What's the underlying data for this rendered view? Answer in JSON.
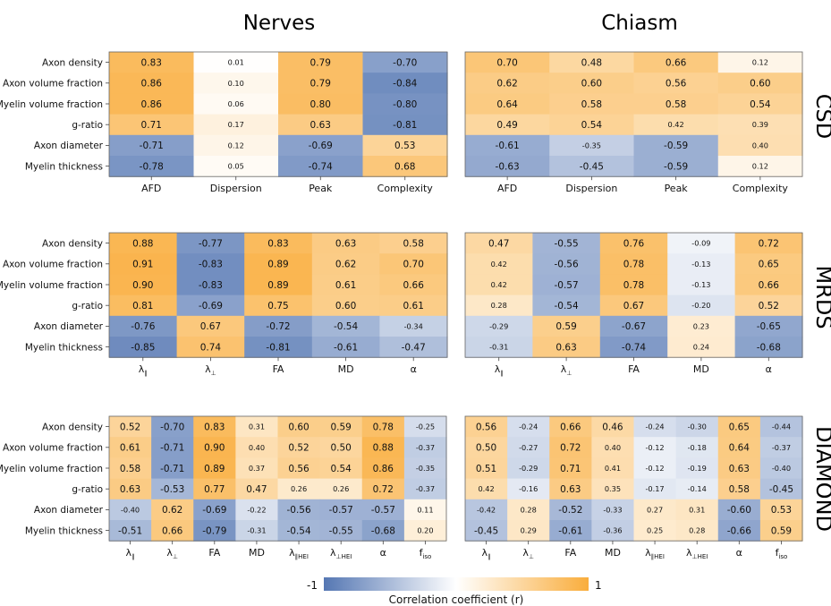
{
  "chart_data": {
    "type": "heatmap",
    "column_titles": [
      "Nerves",
      "Chiasm"
    ],
    "row_titles": [
      "CSD",
      "MRDS",
      "DIAMOND"
    ],
    "row_labels": [
      "Axon density",
      "Axon volume fraction",
      "Myelin volume fraction",
      "g-ratio",
      "Axon diameter",
      "Myelin thickness"
    ],
    "colorbar": {
      "min_label": "-1",
      "max_label": "1",
      "title": "Correlation coefficient (r)",
      "color_negative": "#5577b3",
      "color_zero": "#ffffff",
      "color_positive": "#f9ad3c"
    },
    "panels": [
      {
        "id": "csd-nerves",
        "columns": [
          {
            "main": "AFD"
          },
          {
            "main": "Dispersion"
          },
          {
            "main": "Peak"
          },
          {
            "main": "Complexity"
          }
        ],
        "values": [
          [
            "0.83",
            "0.01",
            "0.79",
            "-0.70"
          ],
          [
            "0.86",
            "0.10",
            "0.79",
            "-0.84"
          ],
          [
            "0.86",
            "0.06",
            "0.80",
            "-0.80"
          ],
          [
            "0.71",
            "0.17",
            "0.63",
            "-0.81"
          ],
          [
            "-0.71",
            "0.12",
            "-0.69",
            "0.53"
          ],
          [
            "-0.78",
            "0.05",
            "-0.74",
            "0.68"
          ]
        ]
      },
      {
        "id": "csd-chiasm",
        "columns": [
          {
            "main": "AFD"
          },
          {
            "main": "Dispersion"
          },
          {
            "main": "Peak"
          },
          {
            "main": "Complexity"
          }
        ],
        "values": [
          [
            "0.70",
            "0.48",
            "0.66",
            "0.12"
          ],
          [
            "0.62",
            "0.60",
            "0.56",
            "0.60"
          ],
          [
            "0.64",
            "0.58",
            "0.58",
            "0.54"
          ],
          [
            "0.49",
            "0.54",
            "0.42",
            "0.39"
          ],
          [
            "-0.61",
            "-0.35",
            "-0.59",
            "0.40"
          ],
          [
            "-0.63",
            "-0.45",
            "-0.59",
            "0.12"
          ]
        ]
      },
      {
        "id": "mrds-nerves",
        "columns": [
          {
            "main": "λ",
            "sub": "∥"
          },
          {
            "main": "λ",
            "sub": "⊥"
          },
          {
            "main": "FA"
          },
          {
            "main": "MD"
          },
          {
            "main": "α"
          }
        ],
        "values": [
          [
            "0.88",
            "-0.77",
            "0.83",
            "0.63",
            "0.58"
          ],
          [
            "0.91",
            "-0.83",
            "0.89",
            "0.62",
            "0.70"
          ],
          [
            "0.90",
            "-0.83",
            "0.89",
            "0.61",
            "0.66"
          ],
          [
            "0.81",
            "-0.69",
            "0.75",
            "0.60",
            "0.61"
          ],
          [
            "-0.76",
            "0.67",
            "-0.72",
            "-0.54",
            "-0.34"
          ],
          [
            "-0.85",
            "0.74",
            "-0.81",
            "-0.61",
            "-0.47"
          ]
        ]
      },
      {
        "id": "mrds-chiasm",
        "columns": [
          {
            "main": "λ",
            "sub": "∥"
          },
          {
            "main": "λ",
            "sub": "⊥"
          },
          {
            "main": "FA"
          },
          {
            "main": "MD"
          },
          {
            "main": "α"
          }
        ],
        "values": [
          [
            "0.47",
            "-0.55",
            "0.76",
            "-0.09",
            "0.72"
          ],
          [
            "0.42",
            "-0.56",
            "0.78",
            "-0.13",
            "0.65"
          ],
          [
            "0.42",
            "-0.57",
            "0.78",
            "-0.13",
            "0.66"
          ],
          [
            "0.28",
            "-0.54",
            "0.67",
            "-0.20",
            "0.52"
          ],
          [
            "-0.29",
            "0.59",
            "-0.67",
            "0.23",
            "-0.65"
          ],
          [
            "-0.31",
            "0.63",
            "-0.74",
            "0.24",
            "-0.68"
          ]
        ]
      },
      {
        "id": "diamond-nerves",
        "columns": [
          {
            "main": "λ",
            "sub": "∥"
          },
          {
            "main": "λ",
            "sub": "⊥"
          },
          {
            "main": "FA"
          },
          {
            "main": "MD"
          },
          {
            "main": "λ",
            "sub": "∥HEI"
          },
          {
            "main": "λ",
            "sub": "⊥HEI"
          },
          {
            "main": "α"
          },
          {
            "main": "f",
            "sub": "iso"
          }
        ],
        "values": [
          [
            "0.52",
            "-0.70",
            "0.83",
            "0.31",
            "0.60",
            "0.59",
            "0.78",
            "-0.25"
          ],
          [
            "0.61",
            "-0.71",
            "0.90",
            "0.40",
            "0.52",
            "0.50",
            "0.88",
            "-0.37"
          ],
          [
            "0.58",
            "-0.71",
            "0.89",
            "0.37",
            "0.56",
            "0.54",
            "0.86",
            "-0.35"
          ],
          [
            "0.63",
            "-0.53",
            "0.77",
            "0.47",
            "0.26",
            "0.26",
            "0.72",
            "-0.37"
          ],
          [
            "-0.40",
            "0.62",
            "-0.69",
            "-0.22",
            "-0.56",
            "-0.57",
            "-0.57",
            "0.11"
          ],
          [
            "-0.51",
            "0.66",
            "-0.79",
            "-0.31",
            "-0.54",
            "-0.55",
            "-0.68",
            "0.20"
          ]
        ]
      },
      {
        "id": "diamond-chiasm",
        "columns": [
          {
            "main": "λ",
            "sub": "∥"
          },
          {
            "main": "λ",
            "sub": "⊥"
          },
          {
            "main": "FA"
          },
          {
            "main": "MD"
          },
          {
            "main": "λ",
            "sub": "∥HEI"
          },
          {
            "main": "λ",
            "sub": "⊥HEI"
          },
          {
            "main": "α"
          },
          {
            "main": "f",
            "sub": "iso"
          }
        ],
        "values": [
          [
            "0.56",
            "-0.24",
            "0.66",
            "0.46",
            "-0.24",
            "-0.30",
            "0.65",
            "-0.44"
          ],
          [
            "0.50",
            "-0.27",
            "0.72",
            "0.40",
            "-0.12",
            "-0.18",
            "0.64",
            "-0.37"
          ],
          [
            "0.51",
            "-0.29",
            "0.71",
            "0.41",
            "-0.12",
            "-0.19",
            "0.63",
            "-0.40"
          ],
          [
            "0.42",
            "-0.16",
            "0.63",
            "0.35",
            "-0.17",
            "-0.14",
            "0.58",
            "-0.45"
          ],
          [
            "-0.42",
            "0.28",
            "-0.52",
            "-0.33",
            "0.27",
            "0.31",
            "-0.60",
            "0.53"
          ],
          [
            "-0.45",
            "0.29",
            "-0.61",
            "-0.36",
            "0.25",
            "0.28",
            "-0.66",
            "0.59"
          ]
        ]
      }
    ]
  }
}
